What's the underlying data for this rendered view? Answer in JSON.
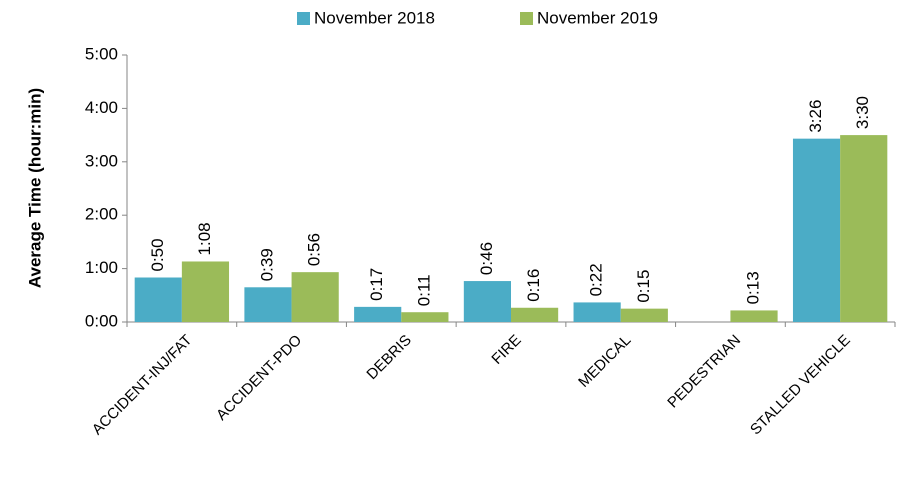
{
  "chart_data": {
    "type": "bar",
    "y_label": "Average Time (hour:min)",
    "categories": [
      "ACCIDENT-INJ/FAT",
      "ACCIDENT-PDO",
      "DEBRIS",
      "FIRE",
      "MEDICAL",
      "PEDESTRIAN",
      "STALLED VEHICLE"
    ],
    "series": [
      {
        "name": "November 2018",
        "color": "#4bacc6",
        "values": [
          50,
          39,
          17,
          46,
          22,
          null,
          206
        ],
        "value_labels": [
          "0:50",
          "0:39",
          "0:17",
          "0:46",
          "0:22",
          null,
          "3:26"
        ]
      },
      {
        "name": "November 2019",
        "color": "#9bbb59",
        "values": [
          68,
          56,
          11,
          16,
          15,
          13,
          210
        ],
        "value_labels": [
          "1:08",
          "0:56",
          "0:11",
          "0:16",
          "0:15",
          "0:13",
          "3:30"
        ]
      }
    ],
    "ylim": [
      0,
      300
    ],
    "yticks": [
      {
        "value": 0,
        "label": "0:00"
      },
      {
        "value": 60,
        "label": "1:00"
      },
      {
        "value": 120,
        "label": "2:00"
      },
      {
        "value": 180,
        "label": "3:00"
      },
      {
        "value": 240,
        "label": "4:00"
      },
      {
        "value": 300,
        "label": "5:00"
      }
    ],
    "legend": "top",
    "grid": false
  }
}
